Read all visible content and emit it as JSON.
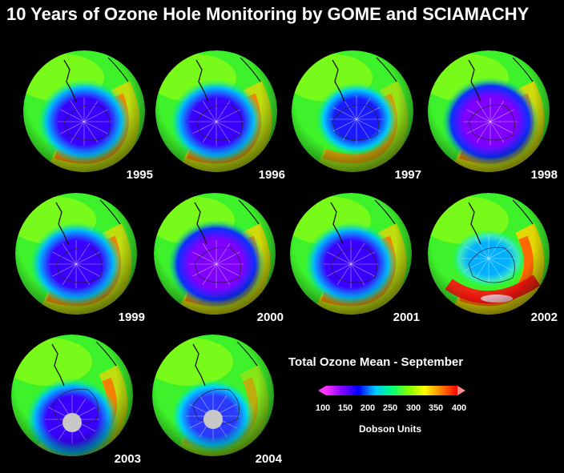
{
  "title": "10 Years of Ozone Hole Monitoring by GOME and SCIAMACHY",
  "panels": [
    {
      "year": "1995",
      "hole": "deep"
    },
    {
      "year": "1996",
      "hole": "deep"
    },
    {
      "year": "1997",
      "hole": "medium"
    },
    {
      "year": "1998",
      "hole": "very-deep"
    },
    {
      "year": "1999",
      "hole": "deep"
    },
    {
      "year": "2000",
      "hole": "very-deep"
    },
    {
      "year": "2001",
      "hole": "deep"
    },
    {
      "year": "2002",
      "hole": "split"
    },
    {
      "year": "2003",
      "hole": "deep-nodata"
    },
    {
      "year": "2004",
      "hole": "medium-nodata"
    }
  ],
  "legend": {
    "title": "Total Ozone Mean - September",
    "ticks": [
      "100",
      "150",
      "200",
      "250",
      "300",
      "350",
      "400"
    ],
    "units": "Dobson Units",
    "colors": [
      "#ff33ff",
      "#8000ff",
      "#0000ff",
      "#00c8ff",
      "#00ff80",
      "#80ff00",
      "#ffff00",
      "#ff8000",
      "#ff0000"
    ]
  }
}
